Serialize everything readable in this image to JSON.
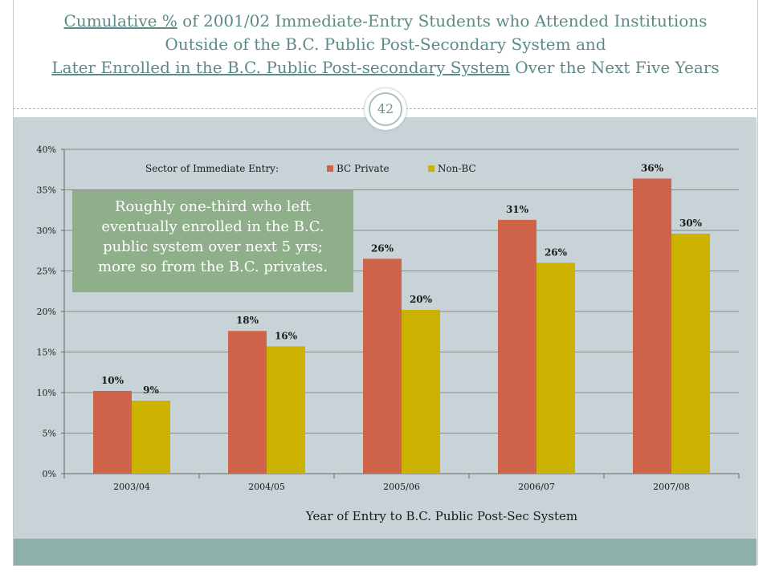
{
  "slide": {
    "title_part1": "Cumulative %",
    "title_part2": " of 2001/02 Immediate-Entry Students who Attended Institutions",
    "title_line2": "Outside of the B.C. Public Post-Secondary System and",
    "title_part3": "Later Enrolled in the B.C. Public Post-secondary System",
    "title_part4": " Over the Next Five Years",
    "page_number": "42",
    "callout_line1": "Roughly one-third who left",
    "callout_line2": "eventually enrolled in the B.C.",
    "callout_line3": "public system over next 5 yrs;",
    "callout_line4": "more so from the B.C. privates."
  },
  "colors": {
    "title": "#5b8a87",
    "bc_private": "#d0644a",
    "non_bc": "#ccb200",
    "panel": "#c8d3d8",
    "footer": "#8db0ab",
    "callout": "#8fae8a"
  },
  "chart_data": {
    "type": "bar",
    "categories": [
      "2003/04",
      "2004/05",
      "2005/06",
      "2006/07",
      "2007/08"
    ],
    "series": [
      {
        "name": "BC Private",
        "values": [
          10.2,
          17.6,
          26.5,
          31.3,
          36.4
        ],
        "labels": [
          "10%",
          "18%",
          "26%",
          "31%",
          "36%"
        ]
      },
      {
        "name": "Non-BC",
        "values": [
          9.0,
          15.7,
          20.2,
          26.0,
          29.6
        ],
        "labels": [
          "9%",
          "16%",
          "20%",
          "26%",
          "30%"
        ]
      }
    ],
    "legend_title": "Sector of Immediate Entry:",
    "xlabel": "Year of Entry to B.C. Public Post-Sec System",
    "ylabel": "",
    "ylim": [
      0,
      40
    ],
    "yticks": [
      0,
      5,
      10,
      15,
      20,
      25,
      30,
      35,
      40
    ],
    "ytick_labels": [
      "0%",
      "5%",
      "10%",
      "15%",
      "20%",
      "25%",
      "30%",
      "35%",
      "40%"
    ],
    "grid": true,
    "legend_position": "top"
  }
}
